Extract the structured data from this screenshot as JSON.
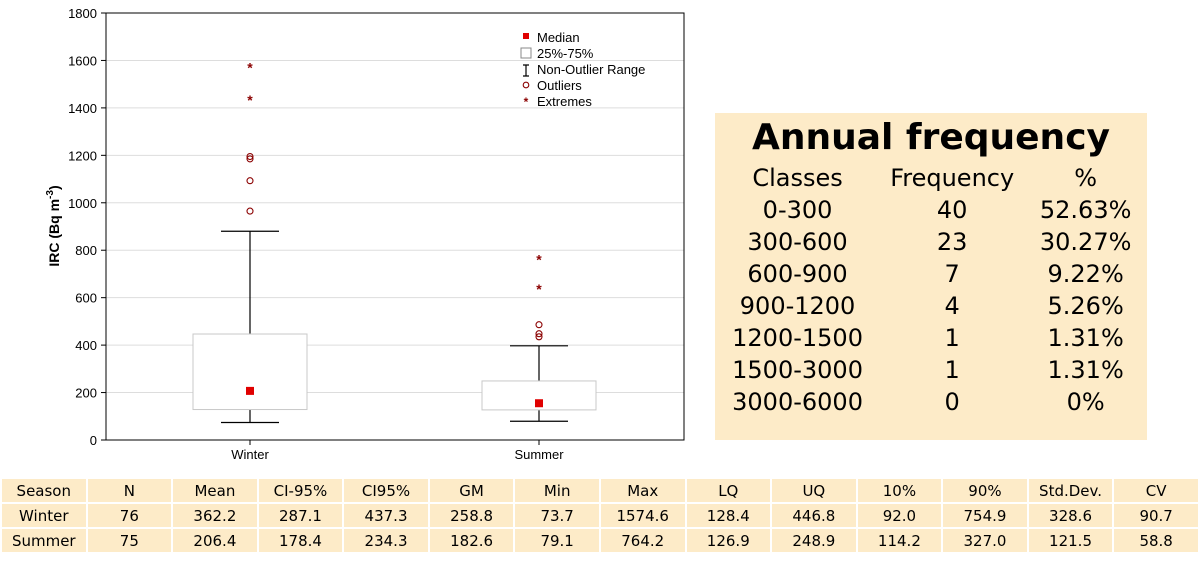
{
  "chart_data": {
    "type": "box",
    "categories": [
      "Winter",
      "Summer"
    ],
    "ylabel": "IRC (Bq m",
    "ylabel_sup": "-3",
    "ylabel_end": ")",
    "ylim": [
      0,
      1800
    ],
    "yticks": [
      0,
      200,
      400,
      600,
      800,
      1000,
      1200,
      1400,
      1600,
      1800
    ],
    "grid": true,
    "legend_position": "top-right",
    "legend": {
      "median": "Median",
      "box": "25%-75%",
      "range": "Non-Outlier Range",
      "outliers": "Outliers",
      "extremes": "Extremes"
    },
    "boxes": [
      {
        "name": "Winter",
        "median": 207,
        "q1": 128.4,
        "q3": 446.8,
        "whisker_low": 73.7,
        "whisker_high": 880,
        "outliers": [
          965,
          1093,
          1185,
          1195
        ],
        "extremes": [
          1437,
          1574.6
        ]
      },
      {
        "name": "Summer",
        "median": 155,
        "q1": 126.9,
        "q3": 248.9,
        "whisker_low": 79.1,
        "whisker_high": 397,
        "outliers": [
          435,
          448,
          486
        ],
        "extremes": [
          640,
          764.2
        ]
      }
    ],
    "colors": {
      "marker": "#e00000",
      "outlier": "#8b0000",
      "grid": "#dddddd"
    }
  },
  "frequency_table": {
    "title": "Annual frequency",
    "headers": [
      "Classes",
      "Frequency",
      "%"
    ],
    "rows": [
      [
        "0-300",
        "40",
        "52.63%"
      ],
      [
        "300-600",
        "23",
        "30.27%"
      ],
      [
        "600-900",
        "7",
        "9.22%"
      ],
      [
        "900-1200",
        "4",
        "5.26%"
      ],
      [
        "1200-1500",
        "1",
        "1.31%"
      ],
      [
        "1500-3000",
        "1",
        "1.31%"
      ],
      [
        "3000-6000",
        "0",
        "0%"
      ]
    ]
  },
  "stats_table": {
    "headers": [
      "Season",
      "N",
      "Mean",
      "CI-95%",
      "CI95%",
      "GM",
      "Min",
      "Max",
      "LQ",
      "UQ",
      "10%",
      "90%",
      "Std.Dev.",
      "CV"
    ],
    "rows": [
      [
        "Winter",
        "76",
        "362.2",
        "287.1",
        "437.3",
        "258.8",
        "73.7",
        "1574.6",
        "128.4",
        "446.8",
        "92.0",
        "754.9",
        "328.6",
        "90.7"
      ],
      [
        "Summer",
        "75",
        "206.4",
        "178.4",
        "234.3",
        "182.6",
        "79.1",
        "764.2",
        "126.9",
        "248.9",
        "114.2",
        "327.0",
        "121.5",
        "58.8"
      ]
    ],
    "cell_color": "#fdebc8"
  }
}
